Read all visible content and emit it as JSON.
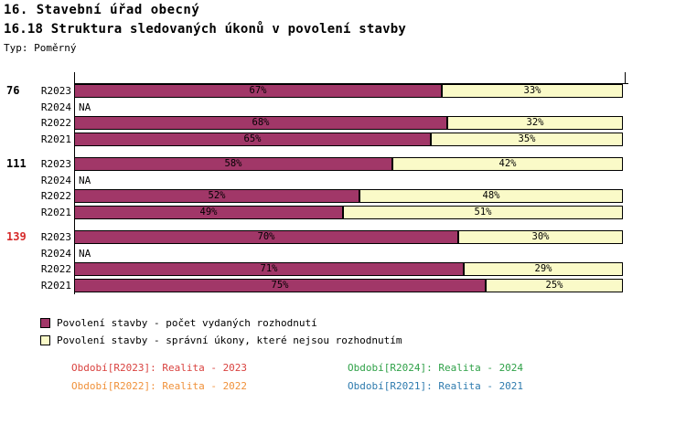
{
  "title": "16. Stavební úřad obecný",
  "subtitle": "16.18 Struktura sledovaných úkonů v povolení stavby",
  "type_label": "Typ: Poměrný",
  "na_label": "NA",
  "colors": {
    "decisions": "#A13768",
    "non_decisions": "#FAFAC8",
    "bar_border": "#000000",
    "group_label": "#000000",
    "group_label_alert": "#D62B2B"
  },
  "chart_data": {
    "type": "bar",
    "orientation": "horizontal",
    "stacked": true,
    "unit": "%",
    "xlim": [
      0,
      100
    ],
    "axis_side": "top",
    "series_names": [
      "Povolení stavby - počet vydaných rozhodnutí",
      "Povolení stavby - správní úkony, které nejsou rozhodnutím"
    ],
    "groups": [
      {
        "label": "76",
        "alert": false,
        "rows": [
          {
            "period": "R2023",
            "na": false,
            "decisions": 67,
            "non_decisions": 33
          },
          {
            "period": "R2024",
            "na": true
          },
          {
            "period": "R2022",
            "na": false,
            "decisions": 68,
            "non_decisions": 32
          },
          {
            "period": "R2021",
            "na": false,
            "decisions": 65,
            "non_decisions": 35
          }
        ]
      },
      {
        "label": "111",
        "alert": false,
        "rows": [
          {
            "period": "R2023",
            "na": false,
            "decisions": 58,
            "non_decisions": 42
          },
          {
            "period": "R2024",
            "na": true
          },
          {
            "period": "R2022",
            "na": false,
            "decisions": 52,
            "non_decisions": 48
          },
          {
            "period": "R2021",
            "na": false,
            "decisions": 49,
            "non_decisions": 51
          }
        ]
      },
      {
        "label": "139",
        "alert": true,
        "rows": [
          {
            "period": "R2023",
            "na": false,
            "decisions": 70,
            "non_decisions": 30
          },
          {
            "period": "R2024",
            "na": true
          },
          {
            "period": "R2022",
            "na": false,
            "decisions": 71,
            "non_decisions": 29
          },
          {
            "period": "R2021",
            "na": false,
            "decisions": 75,
            "non_decisions": 25
          }
        ]
      }
    ]
  },
  "legend": [
    {
      "series": "decisions",
      "label": "Povolení stavby - počet vydaných rozhodnutí"
    },
    {
      "series": "non_decisions",
      "label": "Povolení stavby - správní úkony, které nejsou rozhodnutím"
    }
  ],
  "periods": [
    {
      "label": "Období[R2023]: Realita - 2023",
      "color": "#D9423F"
    },
    {
      "label": "Období[R2024]: Realita - 2024",
      "color": "#2FA148"
    },
    {
      "label": "Období[R2022]: Realita - 2022",
      "color": "#F0913A"
    },
    {
      "label": "Období[R2021]: Realita - 2021",
      "color": "#2E7BAE"
    }
  ]
}
